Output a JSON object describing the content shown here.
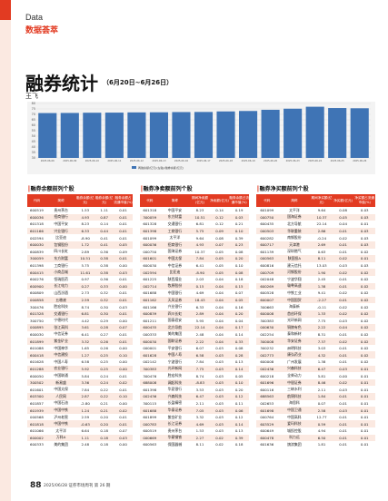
{
  "header": {
    "en": "Data",
    "cn": "数据荟萃"
  },
  "article": {
    "title": "融券统计",
    "date_range": "（6月20日~6月26日）",
    "author": "王飞"
  },
  "chart_data": {
    "type": "bar",
    "categories": [
      "2025-06-06",
      "2025-06-09",
      "2025-06-10",
      "2025-06-11",
      "2025-06-12",
      "2025-06-13",
      "2025-06-16",
      "2025-06-17",
      "2025-06-18",
      "2025-06-19",
      "2025-06-20",
      "2025-06-23",
      "2025-06-24",
      "2025-06-25",
      "2025-06-26"
    ],
    "values": [
      71.2,
      71.3,
      71.5,
      71.6,
      71.8,
      71.9,
      72.1,
      72.2,
      72.7,
      73.1,
      74.2,
      75.2,
      77.0,
      75.8,
      75.6
    ],
    "yticks": [
      "80",
      "75",
      "70",
      "65",
      "60",
      "55",
      "50",
      "45",
      "40",
      "35",
      "30"
    ],
    "ylim": [
      30,
      80
    ],
    "legend": "两融余额(亿元)(左轴)/融券余额(亿元)",
    "bar_color": "#3f74b5"
  },
  "tables": [
    {
      "title": "融券余额前列个股",
      "headers": [
        "代码",
        "简称",
        "融券余额(亿元)",
        "融券余额(亿元)",
        "融券余额占流通市值(%)"
      ],
      "rows": [
        [
          "600519",
          "贵州茅台",
          "1.53",
          "1.11",
          "0.01"
        ],
        [
          "600036",
          "招商银行",
          "4.93",
          "0.87",
          "0.01"
        ],
        [
          "601318",
          "中国平安",
          "8.23",
          "0.14",
          "0.01"
        ],
        [
          "601166",
          "兴业银行",
          "6.33",
          "0.44",
          "0.01"
        ],
        [
          "002594",
          "比亚迪",
          "-8.90",
          "0.41",
          "0.01"
        ],
        [
          "600030",
          "包钢股份",
          "1.72",
          "0.41",
          "0.05"
        ],
        [
          "600839",
          "四川长虹",
          "2.89",
          "0.36",
          "0.09"
        ],
        [
          "300059",
          "东方财富",
          "10.51",
          "0.38",
          "0.01"
        ],
        [
          "601398",
          "工商银行",
          "5.75",
          "0.38",
          "0.00"
        ],
        [
          "600415",
          "小商品城",
          "11.61",
          "0.38",
          "0.03"
        ],
        [
          "600276",
          "恒瑞医药",
          "0.97",
          "0.36",
          "0.01"
        ],
        [
          "600900",
          "长江电力",
          "0.27",
          "0.33",
          "0.00"
        ],
        [
          "600809",
          "山西汾酒",
          "2.73",
          "0.32",
          "0.01"
        ],
        [
          "000858",
          "五粮液",
          "2.59",
          "0.32",
          "0.01"
        ],
        [
          "300476",
          "胜宏科技",
          "8.74",
          "0.30",
          "0.03"
        ],
        [
          "601328",
          "交通银行",
          "6.81",
          "0.30",
          "0.01"
        ],
        [
          "300750",
          "宁德时代",
          "4.42",
          "0.29",
          "0.00"
        ],
        [
          "000895",
          "张江高科",
          "3.61",
          "0.28",
          "0.07"
        ],
        [
          "600030",
          "中信证券",
          "6.41",
          "0.27",
          "0.01"
        ],
        [
          "601899",
          "紫金矿业",
          "3.32",
          "0.26",
          "0.01"
        ],
        [
          "601088",
          "中国神华",
          "1.65",
          "0.26",
          "0.00"
        ],
        [
          "600418",
          "中信建投",
          "1.27",
          "0.25",
          "0.10"
        ],
        [
          "601628",
          "中国人寿",
          "6.58",
          "0.25",
          "0.00"
        ],
        [
          "601288",
          "农业银行",
          "5.92",
          "0.25",
          "0.00"
        ],
        [
          "600050",
          "中国联通",
          "5.84",
          "0.24",
          "0.01"
        ],
        [
          "300502",
          "新易盛",
          "3.36",
          "0.24",
          "0.02"
        ],
        [
          "601601",
          "中国太保",
          "7.84",
          "0.22",
          "0.01"
        ],
        [
          "603300",
          "人民网",
          "2.87",
          "0.22",
          "0.10"
        ],
        [
          "601857",
          "中国石油",
          "-2.80",
          "0.21",
          "0.00"
        ],
        [
          "601939",
          "中国中铁",
          "1.24",
          "0.21",
          "0.02"
        ],
        [
          "000568",
          "泸州老窖",
          "2.59",
          "0.20",
          "0.01"
        ],
        [
          "601818",
          "中国中铁",
          "-0.63",
          "0.20",
          "0.01"
        ],
        [
          "601066",
          "太平洋",
          "6.64",
          "0.18",
          "0.07"
        ],
        [
          "600002",
          "万科A",
          "1.11",
          "0.18",
          "0.03"
        ],
        [
          "600333",
          "美的集团",
          "2.48",
          "0.18",
          "0.00"
        ]
      ]
    },
    {
      "title": "融券净卖额前列个股",
      "headers": [
        "代码",
        "简称",
        "期间净卖额(亿元)",
        "净卖额(亿元)",
        "融券余额占流通市值(%)"
      ],
      "rows": [
        [
          "601318",
          "中国平安",
          "8.23",
          "0.14",
          "0.19"
        ],
        [
          "300059",
          "东方财富",
          "10.51",
          "0.12",
          "0.03"
        ],
        [
          "601328",
          "交通银行",
          "6.81",
          "0.12",
          "0.21"
        ],
        [
          "601398",
          "工商银行",
          "5.75",
          "0.09",
          "0.10"
        ],
        [
          "601099",
          "太平洋",
          "9.64",
          "0.08",
          "0.39"
        ],
        [
          "600036",
          "招商银行",
          "4.93",
          "0.07",
          "0.23"
        ],
        [
          "000750",
          "国海证券",
          "10.37",
          "0.05",
          "0.08"
        ],
        [
          "601601",
          "中国太保",
          "7.84",
          "0.05",
          "0.20"
        ],
        [
          "600030",
          "中信证券",
          "6.41",
          "0.05",
          "0.10"
        ],
        [
          "002594",
          "比亚迪",
          "-8.90",
          "0.05",
          "0.08"
        ],
        [
          "601225",
          "陕西煤业",
          "2.03",
          "0.04",
          "0.18"
        ],
        [
          "002714",
          "牧原股份",
          "0.15",
          "0.04",
          "0.15"
        ],
        [
          "601688",
          "中国银行",
          "4.69",
          "0.04",
          "0.07"
        ],
        [
          "601162",
          "天风证券",
          "18.43",
          "0.04",
          "0.05"
        ],
        [
          "601166",
          "兴业银行",
          "6.33",
          "0.04",
          "0.16"
        ],
        [
          "600839",
          "四川长虹",
          "2.89",
          "0.04",
          "0.20"
        ],
        [
          "601211",
          "国泰君安",
          "5.95",
          "0.04",
          "0.04"
        ],
        [
          "600435",
          "北方导航",
          "22.14",
          "0.04",
          "0.17"
        ],
        [
          "000333",
          "美的集团",
          "2.48",
          "0.04",
          "0.14"
        ],
        [
          "600030",
          "国联证券",
          "2.22",
          "0.04",
          "0.33"
        ],
        [
          "000001",
          "平安银行",
          "6.07",
          "0.03",
          "0.08"
        ],
        [
          "601628",
          "中国人寿",
          "6.58",
          "0.03",
          "0.28"
        ],
        [
          "002142",
          "宁波银行",
          "7.84",
          "0.03",
          "0.13"
        ],
        [
          "300383",
          "光环新网",
          "7.75",
          "0.03",
          "0.14"
        ],
        [
          "300476",
          "胜宏科技",
          "8.74",
          "0.03",
          "0.05"
        ],
        [
          "688008",
          "澜起科技",
          "-8.83",
          "0.03",
          "0.10"
        ],
        [
          "601398",
          "华夏银行",
          "3.53",
          "0.03",
          "0.20"
        ],
        [
          "002436",
          "兴森科技",
          "6.47",
          "0.03",
          "0.12"
        ],
        [
          "300115",
          "长盈精密",
          "2.11",
          "0.03",
          "0.11"
        ],
        [
          "601688",
          "华泰证券",
          "7.05",
          "0.03",
          "0.06"
        ],
        [
          "601899",
          "紫金矿业",
          "3.32",
          "0.03",
          "0.12"
        ],
        [
          "000783",
          "长江证券",
          "4.69",
          "0.03",
          "0.14"
        ],
        [
          "600519",
          "贵州茅台",
          "1.53",
          "0.03",
          "0.13"
        ],
        [
          "000669",
          "华菱钢铁",
          "2.27",
          "0.02",
          "0.39"
        ],
        [
          "600563",
          "保国器械",
          "8.11",
          "0.02",
          "0.18"
        ]
      ]
    },
    {
      "title": "融券净买额前列个股",
      "headers": [
        "代码",
        "简称",
        "期间净买额(亿元)",
        "净买额(亿元)",
        "净买额占流通市值(%)"
      ],
      "rows": [
        [
          "601099",
          "太平洋",
          "9.64",
          "0.08",
          "0.03"
        ],
        [
          "000750",
          "国海证券",
          "10.37",
          "0.05",
          "0.03"
        ],
        [
          "600435",
          "北方导航",
          "22.14",
          "0.04",
          "0.01"
        ],
        [
          "000503",
          "华联重装",
          "2.86",
          "0.01",
          "0.03"
        ],
        [
          "600282",
          "南钢股份",
          "-0.24",
          "0.02",
          "0.03"
        ],
        [
          "600717",
          "天津港",
          "2.69",
          "0.01",
          "0.03"
        ],
        [
          "601139",
          "深圳燃气",
          "0.63",
          "0.01",
          "0.02"
        ],
        [
          "000563",
          "陕国投A",
          "8.11",
          "0.02",
          "0.01"
        ],
        [
          "600816",
          "建元信托",
          "13.03",
          "0.03",
          "0.03"
        ],
        [
          "000709",
          "河钢股份",
          "1.90",
          "0.02",
          "0.02"
        ],
        [
          "002048",
          "宁波华翔",
          "2.45",
          "0.01",
          "0.02"
        ],
        [
          "600269",
          "赣粤高速",
          "1.38",
          "0.01",
          "0.02"
        ],
        [
          "600528",
          "中铁工业",
          "9.41",
          "0.02",
          "0.02"
        ],
        [
          "600007",
          "中国国贸",
          "-2.27",
          "0.01",
          "0.02"
        ],
        [
          "300663",
          "海泰新",
          "-0.11",
          "0.02",
          "0.02"
        ],
        [
          "600008",
          "首创环保",
          "1.33",
          "0.02",
          "0.02"
        ],
        [
          "300383",
          "光环新网",
          "7.75",
          "0.03",
          "0.02"
        ],
        [
          "000630",
          "铜陵有色",
          "2.22",
          "0.04",
          "0.02"
        ],
        [
          "002254",
          "泰和新材",
          "8.31",
          "0.01",
          "0.02"
        ],
        [
          "300008",
          "华安证券",
          "7.37",
          "0.02",
          "0.02"
        ],
        [
          "300232",
          "洲明科技",
          "3.03",
          "0.01",
          "0.02"
        ],
        [
          "002773",
          "康弘药业",
          "4.32",
          "0.01",
          "0.02"
        ],
        [
          "600008",
          "广州发展",
          "1.38",
          "0.01",
          "0.02"
        ],
        [
          "002436",
          "兴森科技",
          "6.47",
          "0.03",
          "0.01"
        ],
        [
          "600218",
          "全柴动力",
          "5.81",
          "0.00",
          "0.01"
        ],
        [
          "601696",
          "中银证券",
          "8.46",
          "0.02",
          "0.01"
        ],
        [
          "600116",
          "三峡水利",
          "2.11",
          "0.03",
          "0.01"
        ],
        [
          "688563",
          "航锦科技",
          "1.84",
          "0.01",
          "0.01"
        ],
        [
          "002653",
          "海思科",
          "0.07",
          "0.01",
          "0.01"
        ],
        [
          "601698",
          "中国卫通",
          "2.58",
          "0.03",
          "0.01"
        ],
        [
          "000764",
          "中国高科",
          "12.77",
          "0.01",
          "0.01"
        ],
        [
          "603529",
          "爱玛科技",
          "0.59",
          "0.01",
          "0.01"
        ],
        [
          "600649",
          "城投控股",
          "4.94",
          "0.01",
          "0.01"
        ],
        [
          "600478",
          "科力远",
          "6.50",
          "0.01",
          "0.01"
        ],
        [
          "601636",
          "旗滨集团",
          "1.81",
          "0.01",
          "0.01"
        ]
      ]
    }
  ],
  "footer": {
    "page_number": "88",
    "meta": "2025/06/28 证券市场周刊 第 26 期"
  }
}
